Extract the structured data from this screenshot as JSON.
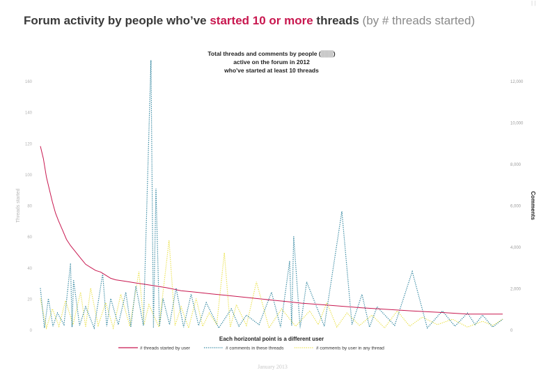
{
  "slide": {
    "title_part1": "Forum activity by people who’ve ",
    "title_highlight": "started 10 or more",
    "title_part2": " threads",
    "title_sub": " (by # threads started)",
    "top_mark": "| |",
    "footer": "January 2013",
    "highlight_color": "#c8174f"
  },
  "chart_data": {
    "type": "line",
    "title_lines": [
      "Total threads and comments by people (",
      "active on the forum in 2012",
      "who've started at least 10 threads"
    ],
    "title_line1_end": ")",
    "xlabel": "Each horizontal point is a different user",
    "ylabel_left": "Threads started",
    "ylabel_right": "Comments",
    "y_left_ticks": [
      "0",
      "20",
      "40",
      "60",
      "80",
      "100",
      "120",
      "140",
      "160"
    ],
    "y_left_lim": [
      0,
      160
    ],
    "y_right_ticks": [
      "0",
      "2,000",
      "4,000",
      "6,000",
      "8,000",
      "10,000",
      "12,000"
    ],
    "y_right_lim": [
      0,
      12000
    ],
    "grid": false,
    "legend_position": "bottom",
    "series": [
      {
        "name": "# threads started by user",
        "color": "#c8174f",
        "style": "solid",
        "axis": "left",
        "points": [
          [
            0,
            118
          ],
          [
            3,
            110
          ],
          [
            6,
            98
          ],
          [
            9,
            90
          ],
          [
            12,
            82
          ],
          [
            15,
            75
          ],
          [
            18,
            70
          ],
          [
            22,
            64
          ],
          [
            26,
            58
          ],
          [
            30,
            54
          ],
          [
            35,
            50
          ],
          [
            40,
            46
          ],
          [
            45,
            42
          ],
          [
            50,
            40
          ],
          [
            55,
            38
          ],
          [
            60,
            37
          ],
          [
            65,
            35
          ],
          [
            70,
            33
          ],
          [
            75,
            32
          ],
          [
            85,
            31
          ],
          [
            95,
            30
          ],
          [
            105,
            29
          ],
          [
            115,
            28
          ],
          [
            125,
            27
          ],
          [
            140,
            25
          ],
          [
            155,
            24
          ],
          [
            170,
            23
          ],
          [
            185,
            22
          ],
          [
            200,
            21
          ],
          [
            215,
            20
          ],
          [
            230,
            19
          ],
          [
            245,
            18
          ],
          [
            260,
            17
          ],
          [
            280,
            16
          ],
          [
            300,
            15
          ],
          [
            320,
            14
          ],
          [
            345,
            13
          ],
          [
            370,
            12
          ],
          [
            400,
            11
          ],
          [
            425,
            10
          ],
          [
            460,
            10
          ]
        ]
      },
      {
        "name": "# comments in these threads",
        "color": "#1d7a96",
        "style": "dotted",
        "axis": "right",
        "peaks": [
          [
            0,
            2000
          ],
          [
            8,
            1500
          ],
          [
            17,
            800
          ],
          [
            30,
            3200
          ],
          [
            33,
            2400
          ],
          [
            45,
            1100
          ],
          [
            62,
            2700
          ],
          [
            70,
            1500
          ],
          [
            85,
            1800
          ],
          [
            95,
            2100
          ],
          [
            110,
            13000
          ],
          [
            115,
            6800
          ],
          [
            122,
            1500
          ],
          [
            135,
            2000
          ],
          [
            150,
            1700
          ],
          [
            165,
            1300
          ],
          [
            190,
            1000
          ],
          [
            205,
            700
          ],
          [
            230,
            1800
          ],
          [
            248,
            3300
          ],
          [
            252,
            4500
          ],
          [
            265,
            2300
          ],
          [
            300,
            5700
          ],
          [
            320,
            1700
          ],
          [
            335,
            1100
          ],
          [
            370,
            2800
          ],
          [
            400,
            900
          ],
          [
            425,
            800
          ],
          [
            440,
            700
          ],
          [
            460,
            500
          ]
        ]
      },
      {
        "name": "# comments by user in any thread",
        "color": "#e8de3a",
        "style": "dotted",
        "axis": "right",
        "peaks": [
          [
            0,
            1500
          ],
          [
            12,
            1000
          ],
          [
            25,
            1400
          ],
          [
            40,
            1800
          ],
          [
            50,
            2000
          ],
          [
            65,
            1300
          ],
          [
            80,
            1700
          ],
          [
            98,
            2800
          ],
          [
            108,
            1200
          ],
          [
            128,
            4300
          ],
          [
            140,
            1100
          ],
          [
            155,
            1500
          ],
          [
            168,
            800
          ],
          [
            183,
            3700
          ],
          [
            195,
            1200
          ],
          [
            215,
            2300
          ],
          [
            240,
            1000
          ],
          [
            268,
            900
          ],
          [
            285,
            1300
          ],
          [
            305,
            800
          ],
          [
            330,
            700
          ],
          [
            355,
            900
          ],
          [
            380,
            600
          ],
          [
            410,
            500
          ],
          [
            440,
            400
          ],
          [
            460,
            500
          ]
        ]
      }
    ]
  }
}
